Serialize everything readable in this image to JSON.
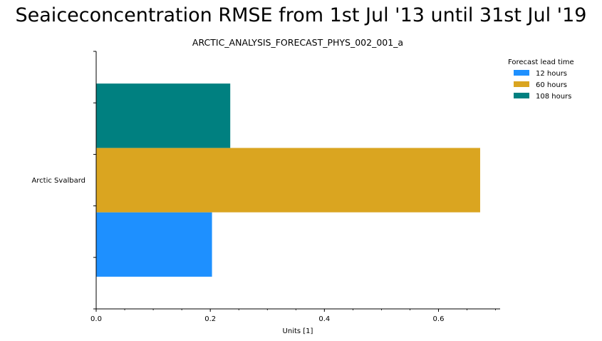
{
  "title": "Seaiceconcentration RMSE from 1st Jul '13 until 31st Jul '19",
  "chart_data": {
    "type": "bar",
    "orientation": "horizontal",
    "subtitle": "ARCTIC_ANALYSIS_FORECAST_PHYS_002_001_a",
    "categories": [
      "Arctic Svalbard"
    ],
    "series": [
      {
        "name": "12 hours",
        "values": [
          0.203
        ],
        "color": "#1e90ff"
      },
      {
        "name": "60 hours",
        "values": [
          0.673
        ],
        "color": "#daa520"
      },
      {
        "name": "108 hours",
        "values": [
          0.235
        ],
        "color": "#008080"
      }
    ],
    "xlabel": "Units [1]",
    "ylabel": "",
    "xlim": [
      0,
      0.708
    ],
    "xticks": [
      0.0,
      0.2,
      0.4,
      0.6
    ],
    "xtick_labels": [
      "0.0",
      "0.2",
      "0.4",
      "0.6"
    ],
    "legend_title": "Forecast lead time",
    "legend_position": "top-right",
    "grid": false
  }
}
